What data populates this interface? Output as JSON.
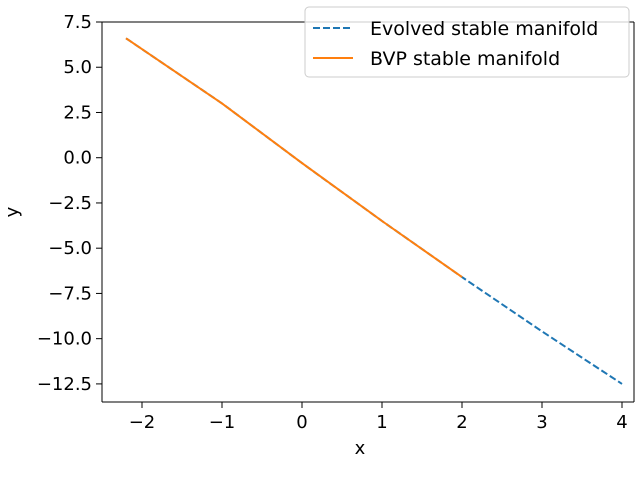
{
  "chart_data": {
    "type": "line",
    "title": "",
    "xlabel": "x",
    "ylabel": "y",
    "xlim": [
      -2.5,
      4.15
    ],
    "ylim": [
      -13.5,
      7.5
    ],
    "xticks": [
      -2,
      -1,
      0,
      1,
      2,
      3,
      4
    ],
    "xtick_labels": [
      "−2",
      "−1",
      "0",
      "1",
      "2",
      "3",
      "4"
    ],
    "yticks": [
      7.5,
      5.0,
      2.5,
      0.0,
      -2.5,
      -5.0,
      -7.5,
      -10.0,
      -12.5
    ],
    "ytick_labels": [
      "7.5",
      "5.0",
      "2.5",
      "0.0",
      "−2.5",
      "−5.0",
      "−7.5",
      "−10.0",
      "−12.5"
    ],
    "grid": false,
    "legend_position": "top-right",
    "series": [
      {
        "name": "Evolved stable manifold",
        "style": "dashed",
        "color": "#1f77b4",
        "x": [
          -2.2,
          -1.0,
          0.0,
          1.0,
          2.0,
          3.0,
          4.0
        ],
        "y": [
          6.6,
          3.0,
          -0.3,
          -3.5,
          -6.6,
          -9.6,
          -12.5
        ]
      },
      {
        "name": "BVP stable manifold",
        "style": "solid",
        "color": "#ff7f0e",
        "x": [
          -2.2,
          -1.0,
          0.0,
          1.0,
          2.0
        ],
        "y": [
          6.6,
          3.0,
          -0.3,
          -3.5,
          -6.6
        ]
      }
    ]
  }
}
